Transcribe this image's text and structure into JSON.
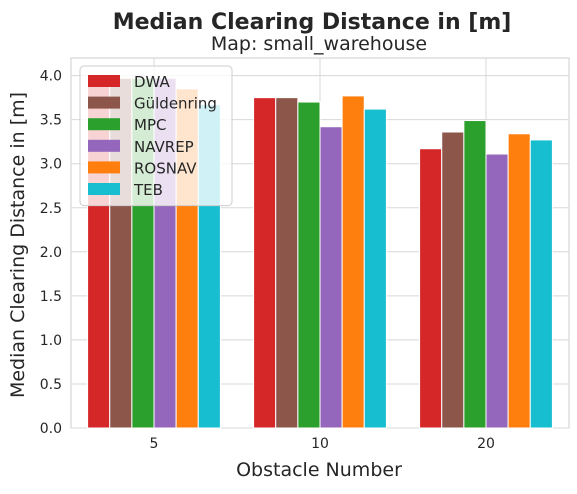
{
  "chart_data": {
    "type": "bar",
    "title": "Median Clearing Distance in [m]",
    "subtitle": "Map: small_warehouse",
    "xlabel": "Obstacle Number",
    "ylabel": "Median Clearing Distance in [m]",
    "categories": [
      "5",
      "10",
      "20"
    ],
    "ylim": [
      0,
      4.2
    ],
    "yticks": [
      "0.0",
      "0.5",
      "1.0",
      "1.5",
      "2.0",
      "2.5",
      "3.0",
      "3.5",
      "4.0"
    ],
    "grid": true,
    "legend_position": "top-left",
    "series": [
      {
        "name": "DWA",
        "color": "#d62728",
        "values": [
          3.97,
          3.75,
          3.17
        ]
      },
      {
        "name": "Güldenring",
        "color": "#8c564b",
        "values": [
          3.97,
          3.75,
          3.36
        ]
      },
      {
        "name": "MPC",
        "color": "#2ca02c",
        "values": [
          3.97,
          3.7,
          3.49
        ]
      },
      {
        "name": "NAVREP",
        "color": "#9467bd",
        "values": [
          3.97,
          3.42,
          3.11
        ]
      },
      {
        "name": "ROSNAV",
        "color": "#ff7f0e",
        "values": [
          3.85,
          3.77,
          3.34
        ]
      },
      {
        "name": "TEB",
        "color": "#17becf",
        "values": [
          3.67,
          3.62,
          3.27
        ]
      }
    ]
  }
}
